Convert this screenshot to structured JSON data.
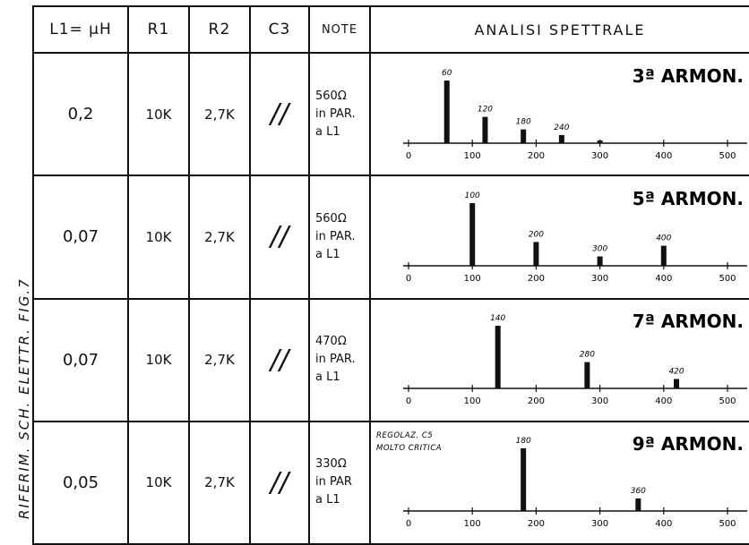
{
  "side_label": "RIFERIM. SCH. ELETTR. FIG.7",
  "headers": [
    "L1= μH",
    "R1",
    "R2",
    "C3",
    "NOTE",
    "ANALISI SPETTRALE"
  ],
  "rows": [
    {
      "l1": "0,2",
      "r1": "10K",
      "r2": "2,7K",
      "c3": "//",
      "note": [
        "560Ω",
        "in PAR.",
        "a L1"
      ]
    },
    {
      "l1": "0,07",
      "r1": "10K",
      "r2": "2,7K",
      "c3": "//",
      "note": [
        "560Ω",
        "in PAR.",
        "a L1"
      ]
    },
    {
      "l1": "0,07",
      "r1": "10K",
      "r2": "2,7K",
      "c3": "//",
      "note": [
        "470Ω",
        "in PAR.",
        "a L1"
      ]
    },
    {
      "l1": "0,05",
      "r1": "10K",
      "r2": "2,7K",
      "c3": "//",
      "note": [
        "330Ω",
        "in PAR",
        "a L1"
      ]
    }
  ],
  "chart_data": [
    {
      "type": "bar",
      "title": "3ª ARMON.",
      "x": [
        60,
        120,
        180,
        240,
        300
      ],
      "values": [
        1.0,
        0.42,
        0.22,
        0.13,
        0.03
      ],
      "labels": [
        "60",
        "120",
        "180",
        "240",
        ""
      ],
      "xlim": [
        0,
        500
      ],
      "ticks": [
        "0",
        "100",
        "200",
        "300",
        "400",
        "500"
      ]
    },
    {
      "type": "bar",
      "title": "5ª ARMON.",
      "x": [
        100,
        200,
        300,
        400
      ],
      "values": [
        1.0,
        0.38,
        0.15,
        0.32
      ],
      "labels": [
        "100",
        "200",
        "300",
        "400"
      ],
      "xlim": [
        0,
        500
      ],
      "ticks": [
        "0",
        "100",
        "200",
        "300",
        "400",
        "500"
      ]
    },
    {
      "type": "bar",
      "title": "7ª ARMON.",
      "x": [
        140,
        280,
        420
      ],
      "values": [
        1.0,
        0.42,
        0.15
      ],
      "labels": [
        "140",
        "280",
        "420"
      ],
      "xlim": [
        0,
        500
      ],
      "ticks": [
        "0",
        "100",
        "200",
        "300",
        "400",
        "500"
      ]
    },
    {
      "type": "bar",
      "title": "9ª ARMON.",
      "x": [
        180,
        360
      ],
      "values": [
        1.0,
        0.2
      ],
      "labels": [
        "180",
        "360"
      ],
      "xlim": [
        0,
        500
      ],
      "ticks": [
        "0",
        "100",
        "200",
        "300",
        "400",
        "500"
      ],
      "remark": [
        "REGOLAZ. C5",
        "MOLTO CRITICA"
      ]
    }
  ]
}
